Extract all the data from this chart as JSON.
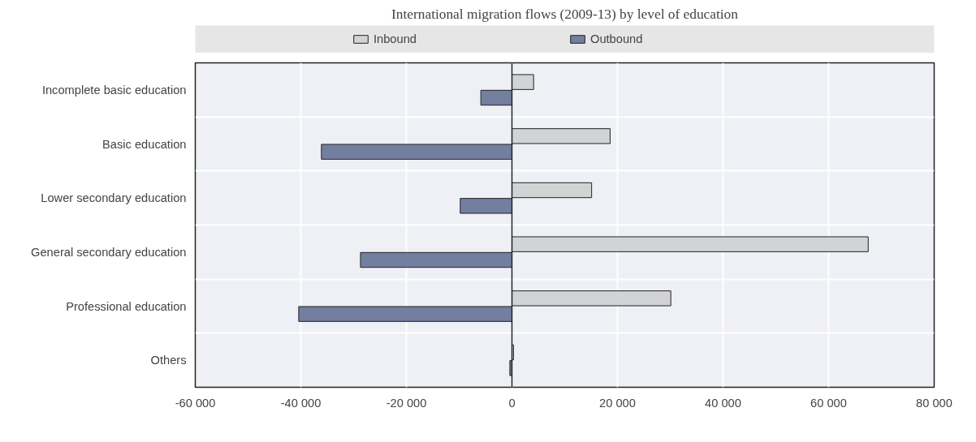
{
  "chart_data": {
    "type": "bar",
    "orientation": "horizontal",
    "title": "International migration flows (2009-13) by level of education",
    "categories": [
      "Incomplete basic education",
      "Basic education",
      "Lower secondary education",
      "General secondary education",
      "Professional education",
      "Others"
    ],
    "series": [
      {
        "name": "Inbound",
        "color": "#d2d3d5",
        "values": [
          4100,
          18600,
          15100,
          67500,
          30100,
          300
        ]
      },
      {
        "name": "Outbound",
        "color": "#737f9f",
        "values": [
          -5900,
          -36100,
          -9800,
          -28700,
          -40400,
          -400
        ]
      }
    ],
    "xlim": [
      -60000,
      80000
    ],
    "xticks": [
      {
        "value": -60000,
        "label": "-60 000"
      },
      {
        "value": -40000,
        "label": "-40 000"
      },
      {
        "value": -20000,
        "label": "-20 000"
      },
      {
        "value": 0,
        "label": "0"
      },
      {
        "value": 20000,
        "label": "20 000"
      },
      {
        "value": 40000,
        "label": "40 000"
      },
      {
        "value": 60000,
        "label": "60 000"
      },
      {
        "value": 80000,
        "label": "80 000"
      }
    ],
    "grid": true,
    "legend": "top"
  }
}
